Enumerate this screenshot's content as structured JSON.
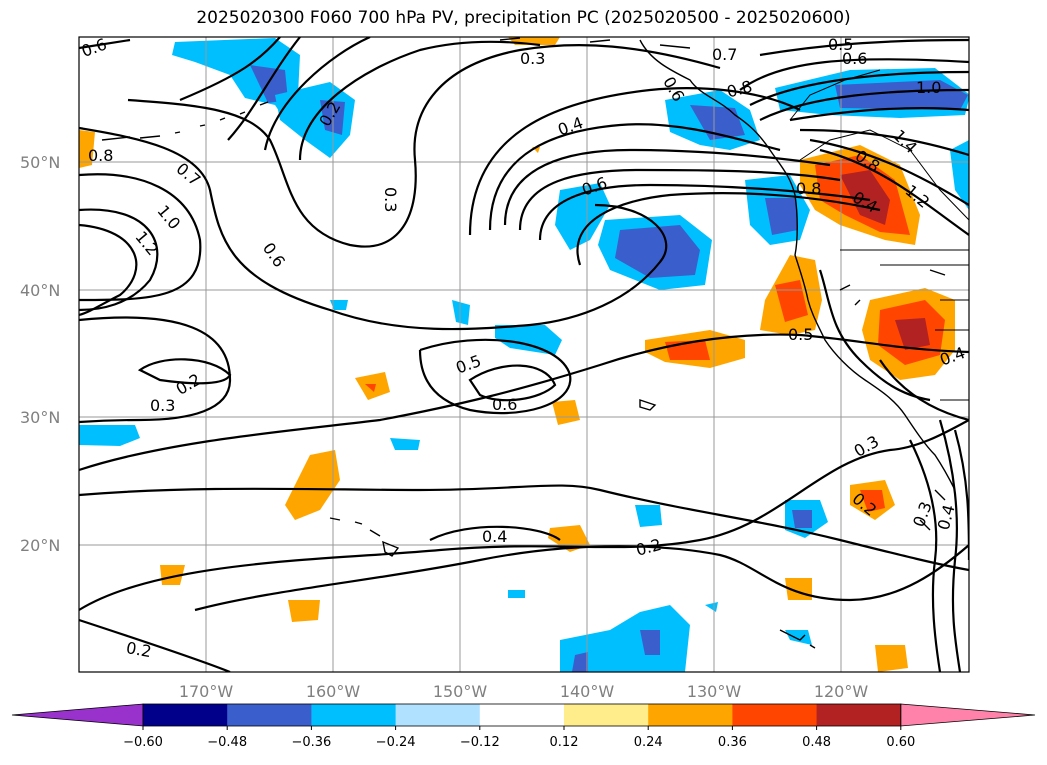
{
  "title": "2025020300 F060 700 hPa PV, precipitation PC (2025020500 - 2025020600)",
  "map": {
    "lon_labels": [
      "170°W",
      "160°W",
      "150°W",
      "140°W",
      "130°W",
      "120°W"
    ],
    "lat_labels": [
      "50°N",
      "40°N",
      "30°N",
      "20°N"
    ],
    "contour_labels": [
      "0.6",
      "0.3",
      "0.7",
      "0.5",
      "0.6",
      "1.0",
      "0.2",
      "0.4",
      "0.8",
      "0.6",
      "1.4",
      "0.8",
      "0.4",
      "1.2",
      "0.3",
      "0.6",
      "0.8",
      "0.8",
      "0.7",
      "1.0",
      "1.2",
      "0.6",
      "0.2",
      "0.3",
      "0.5",
      "0.6",
      "0.5",
      "0.4",
      "0.3",
      "0.3",
      "0.4",
      "0.2",
      "0.4",
      "0.2",
      "0.2"
    ]
  },
  "colorbar": {
    "ticks": [
      "−0.60",
      "−0.48",
      "−0.36",
      "−0.24",
      "−0.12",
      "0.12",
      "0.24",
      "0.36",
      "0.48",
      "0.60"
    ],
    "colors": [
      "#9932cc",
      "#00008b",
      "#3a5fcd",
      "#00bfff",
      "#b0e2ff",
      "#ffffff",
      "#ffec8b",
      "#ffa500",
      "#ff4500",
      "#b22222",
      "#ff82ab"
    ]
  }
}
